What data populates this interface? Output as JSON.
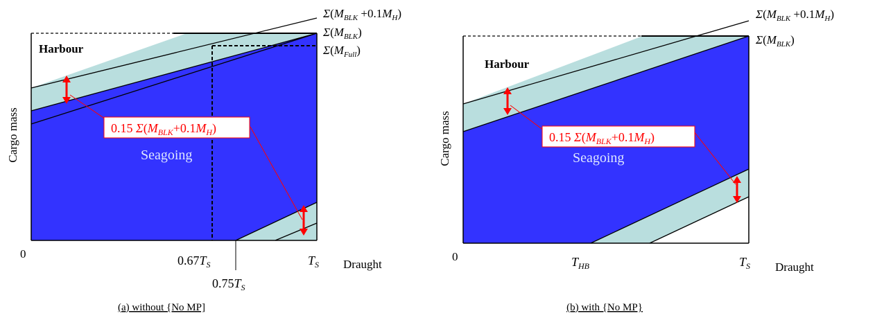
{
  "colors": {
    "seagoing_fill": "#3333ff",
    "band_fill": "#b9dede",
    "callout_text": "#ff0000",
    "callout_border": "#ff0000",
    "arrow": "#ff0000",
    "seagoing_label": "#dde6ff"
  },
  "panel_a": {
    "caption": "(a)  without {No MP]",
    "y_axis_label": "Cargo mass",
    "origin_label": "0",
    "harbour_label": "Harbour",
    "seagoing_label": "Seagoing",
    "callout_text": "0.15 Σ(M_BLK+0.1M_H)",
    "x_tick_067": "0.67T_S",
    "x_tick_075": "0.75T_S",
    "x_tick_ts": "T_S",
    "x_axis_label": "Draught",
    "line_label_blk_h": "Σ(M_BLK+0.1M_H)",
    "line_label_blk": "Σ(M_BLK)",
    "line_label_full": "Σ(M_Full)"
  },
  "panel_b": {
    "caption": "(b)  with {No MP}",
    "y_axis_label": "Cargo mass",
    "origin_label": "0",
    "harbour_label": "Harbour",
    "seagoing_label": "Seagoing",
    "callout_text": "0.15 Σ(M_BLK+0.1M_H)",
    "x_tick_thb": "T_HB",
    "x_tick_ts": "T_S",
    "x_axis_label": "Draught",
    "line_label_blk_h": "Σ(M_BLK+0.1M_H)",
    "line_label_blk": "Σ(M_BLK)"
  }
}
